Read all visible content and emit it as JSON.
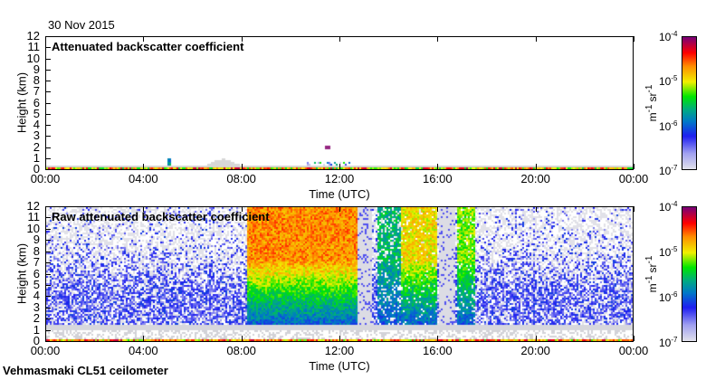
{
  "date": "30 Nov 2015",
  "footer": "Vehmasmaki CL51 ceilometer",
  "chart_data": [
    {
      "type": "heatmap",
      "title": "Attenuated backscatter coefficient",
      "xlabel": "Time (UTC)",
      "ylabel": "Height (km)",
      "x_ticks": [
        "00:00",
        "04:00",
        "08:00",
        "12:00",
        "16:00",
        "20:00",
        "00:00"
      ],
      "y_ticks": [
        "0",
        "1",
        "2",
        "3",
        "4",
        "5",
        "6",
        "7",
        "8",
        "9",
        "10",
        "11",
        "12"
      ],
      "xlim_hours": [
        0,
        24
      ],
      "ylim_km": [
        0,
        12
      ],
      "colorbar": {
        "unit_base": "m",
        "unit_exp1": "-1",
        "unit_base2": "sr",
        "unit_exp2": "-1",
        "ticks": [
          {
            "base": "10",
            "exp": "-4"
          },
          {
            "base": "10",
            "exp": "-5"
          },
          {
            "base": "10",
            "exp": "-6"
          },
          {
            "base": "10",
            "exp": "-7"
          }
        ],
        "range": [
          1e-07,
          0.0001
        ],
        "scale": "log"
      }
    },
    {
      "type": "heatmap",
      "title": "Raw attenuated backscatter coefficient",
      "xlabel": "Time (UTC)",
      "ylabel": "Height (km)",
      "x_ticks": [
        "00:00",
        "04:00",
        "08:00",
        "12:00",
        "16:00",
        "20:00",
        "00:00"
      ],
      "y_ticks": [
        "0",
        "1",
        "2",
        "3",
        "4",
        "5",
        "6",
        "7",
        "8",
        "9",
        "10",
        "11",
        "12"
      ],
      "xlim_hours": [
        0,
        24
      ],
      "ylim_km": [
        0,
        12
      ],
      "colorbar": {
        "unit_base": "m",
        "unit_exp1": "-1",
        "unit_base2": "sr",
        "unit_exp2": "-1",
        "ticks": [
          {
            "base": "10",
            "exp": "-4"
          },
          {
            "base": "10",
            "exp": "-5"
          },
          {
            "base": "10",
            "exp": "-6"
          },
          {
            "base": "10",
            "exp": "-7"
          }
        ],
        "range": [
          1e-07,
          0.0001
        ],
        "scale": "log"
      }
    }
  ]
}
